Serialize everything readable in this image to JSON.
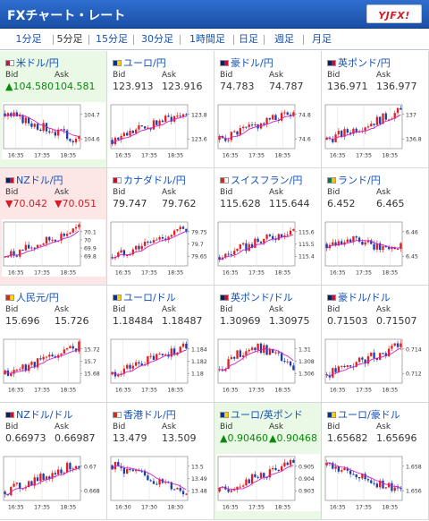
{
  "header": {
    "title": "FXチャート・レート",
    "logo": "YJFX!"
  },
  "tabs": [
    {
      "label": "1分足",
      "active": false
    },
    {
      "label": "5分足",
      "active": true
    },
    {
      "label": "15分足",
      "active": false
    },
    {
      "label": "30分足",
      "active": false
    },
    {
      "label": "1時間足",
      "active": false
    },
    {
      "label": "日足",
      "active": false
    },
    {
      "label": "週足",
      "active": false
    },
    {
      "label": "月足",
      "active": false
    }
  ],
  "bid_label": "Bid",
  "ask_label": "Ask",
  "pairs": [
    {
      "name": "米ドル/円",
      "bid": "▲104.580",
      "ask": "104.581",
      "state": "up",
      "flag": [
        "#b22234",
        "#ffffff"
      ],
      "yticks": [
        "104.7",
        "104.6"
      ],
      "xticks": [
        "16:35",
        "17:35",
        "18:35"
      ],
      "trend": "down"
    },
    {
      "name": "ユーロ/円",
      "bid": "123.913",
      "ask": "123.916",
      "state": "none",
      "flag": [
        "#003399",
        "#ffcc00"
      ],
      "yticks": [
        "123.8",
        "123.6"
      ],
      "xticks": [
        "16:35",
        "17:35",
        "18:35"
      ],
      "trend": "up"
    },
    {
      "name": "豪ドル/円",
      "bid": "74.783",
      "ask": "74.787",
      "state": "none",
      "flag": [
        "#012169",
        "#c8102e"
      ],
      "yticks": [
        "74.8",
        "74.6"
      ],
      "xticks": [
        "16:35",
        "17:35",
        "18:35"
      ],
      "trend": "up"
    },
    {
      "name": "英ポンド/円",
      "bid": "136.971",
      "ask": "136.977",
      "state": "none",
      "flag": [
        "#012169",
        "#c8102e"
      ],
      "yticks": [
        "137",
        "136.8"
      ],
      "xticks": [
        "16:35",
        "17:35",
        "18:35"
      ],
      "trend": "up"
    },
    {
      "name": "NZドル/円",
      "bid": "▼70.042",
      "ask": "▼70.051",
      "state": "down",
      "flag": [
        "#012169",
        "#c8102e"
      ],
      "yticks": [
        "70.1",
        "70",
        "69.9",
        "69.8"
      ],
      "xticks": [
        "16:35",
        "17:35",
        "18:35"
      ],
      "trend": "up"
    },
    {
      "name": "カナダドル/円",
      "bid": "79.747",
      "ask": "79.762",
      "state": "none",
      "flag": [
        "#d80621",
        "#ffffff"
      ],
      "yticks": [
        "79.75",
        "79.7",
        "79.65"
      ],
      "xticks": [
        "16:35",
        "17:35",
        "18:35"
      ],
      "trend": "up"
    },
    {
      "name": "スイスフラン/円",
      "bid": "115.628",
      "ask": "115.644",
      "state": "none",
      "flag": [
        "#d52b1e",
        "#ffffff"
      ],
      "yticks": [
        "115.6",
        "115.5",
        "115.4"
      ],
      "xticks": [
        "16:35",
        "17:35",
        "18:35"
      ],
      "trend": "up"
    },
    {
      "name": "ランド/円",
      "bid": "6.452",
      "ask": "6.465",
      "state": "none",
      "flag": [
        "#007a4d",
        "#ffb612"
      ],
      "yticks": [
        "6.46",
        "6.45"
      ],
      "xticks": [
        "16:35",
        "17:35",
        "18:35"
      ],
      "trend": "flat"
    },
    {
      "name": "人民元/円",
      "bid": "15.696",
      "ask": "15.726",
      "state": "none",
      "flag": [
        "#de2910",
        "#ffde00"
      ],
      "yticks": [
        "15.72",
        "15.7",
        "15.68"
      ],
      "xticks": [
        "16:35",
        "17:35",
        "18:35"
      ],
      "trend": "up"
    },
    {
      "name": "ユーロ/ドル",
      "bid": "1.18484",
      "ask": "1.18487",
      "state": "none",
      "flag": [
        "#003399",
        "#ffcc00"
      ],
      "yticks": [
        "1.184",
        "1.182",
        "1.18"
      ],
      "xticks": [
        "16:35",
        "17:35",
        "18:35"
      ],
      "trend": "up"
    },
    {
      "name": "英ポンド/ドル",
      "bid": "1.30969",
      "ask": "1.30975",
      "state": "none",
      "flag": [
        "#012169",
        "#c8102e"
      ],
      "yticks": [
        "1.31",
        "1.308",
        "1.306"
      ],
      "xticks": [
        "16:35",
        "17:35",
        "18:35"
      ],
      "trend": "updown"
    },
    {
      "name": "豪ドル/ドル",
      "bid": "0.71503",
      "ask": "0.71507",
      "state": "none",
      "flag": [
        "#012169",
        "#c8102e"
      ],
      "yticks": [
        "0.714",
        "0.712"
      ],
      "xticks": [
        "16:35",
        "17:35",
        "18:35"
      ],
      "trend": "up"
    },
    {
      "name": "NZドル/ドル",
      "bid": "0.66973",
      "ask": "0.66987",
      "state": "none",
      "flag": [
        "#012169",
        "#c8102e"
      ],
      "yticks": [
        "0.67",
        "0.668"
      ],
      "xticks": [
        "16:35",
        "17:35",
        "18:35"
      ],
      "trend": "up"
    },
    {
      "name": "香港ドル/円",
      "bid": "13.479",
      "ask": "13.509",
      "state": "none",
      "flag": [
        "#de2910",
        "#ffffff"
      ],
      "yticks": [
        "13.5",
        "13.49",
        "13.48"
      ],
      "xticks": [
        "16:30",
        "17:30",
        "18:30"
      ],
      "trend": "down"
    },
    {
      "name": "ユーロ/英ポンド",
      "bid": "▲0.90460",
      "ask": "▲0.90468",
      "state": "up",
      "flag": [
        "#003399",
        "#ffcc00"
      ],
      "yticks": [
        "0.905",
        "0.904",
        "0.903"
      ],
      "xticks": [
        "16:35",
        "17:35",
        "18:35"
      ],
      "trend": "up"
    },
    {
      "name": "ユーロ/豪ドル",
      "bid": "1.65682",
      "ask": "1.65696",
      "state": "none",
      "flag": [
        "#003399",
        "#ffcc00"
      ],
      "yticks": [
        "1.658",
        "1.656"
      ],
      "xticks": [
        "16:35",
        "17:35",
        "18:35"
      ],
      "trend": "down"
    }
  ]
}
